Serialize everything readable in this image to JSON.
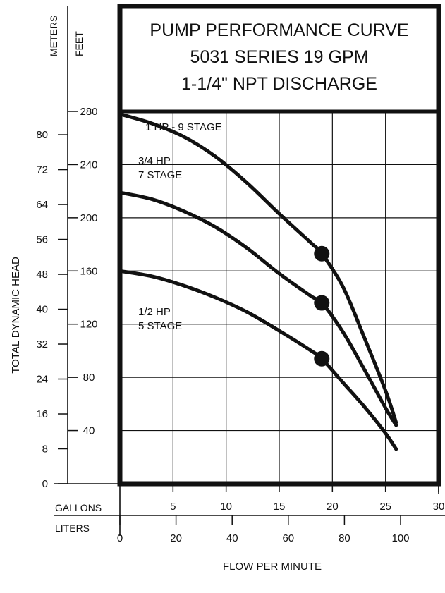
{
  "chart_data": {
    "type": "line",
    "title": [
      "PUMP PERFORMANCE CURVE",
      "5031 SERIES 19 GPM",
      "1-1/4\" NPT DISCHARGE"
    ],
    "xlabel": "FLOW PER MINUTE",
    "ylabel": "TOTAL DYNAMIC HEAD",
    "x_units": {
      "primary": "GALLONS",
      "secondary": "LITERS"
    },
    "y_units": {
      "primary": "FEET",
      "secondary": "METERS"
    },
    "xlim": [
      0,
      30
    ],
    "ylim_feet": [
      0,
      280
    ],
    "x_ticks_gallons": [
      "5",
      "10",
      "15",
      "20",
      "25",
      "30"
    ],
    "x_ticks_liters": [
      "0",
      "20",
      "40",
      "60",
      "80",
      "100"
    ],
    "y_ticks_feet": [
      "40",
      "80",
      "120",
      "160",
      "200",
      "240",
      "280"
    ],
    "y_ticks_meters": [
      "0",
      "8",
      "16",
      "24",
      "32",
      "40",
      "48",
      "56",
      "64",
      "72",
      "80"
    ],
    "grid": true,
    "series": [
      {
        "name": "1 HP - 9 STAGE",
        "x": [
          0,
          3,
          6,
          9,
          12,
          15,
          18,
          19,
          21,
          23,
          25,
          26
        ],
        "y": [
          278,
          271,
          261,
          246,
          226,
          203,
          181,
          173,
          148,
          110,
          70,
          46
        ],
        "marker": {
          "x": 19,
          "y": 173
        }
      },
      {
        "name": "3/4 HP\n7 STAGE",
        "x": [
          0,
          3,
          6,
          9,
          12,
          15,
          18,
          19,
          21,
          23,
          25,
          26
        ],
        "y": [
          219,
          214,
          205,
          193,
          177,
          158,
          141,
          136,
          114,
          86,
          57,
          44
        ],
        "marker": {
          "x": 19,
          "y": 136
        }
      },
      {
        "name": "1/2 HP\n5 STAGE",
        "x": [
          0,
          3,
          6,
          9,
          12,
          15,
          18,
          19,
          21,
          23,
          25,
          26
        ],
        "y": [
          160,
          156,
          149,
          140,
          129,
          115,
          100,
          94,
          76,
          58,
          38,
          26
        ],
        "marker": {
          "x": 19,
          "y": 94
        }
      }
    ]
  }
}
